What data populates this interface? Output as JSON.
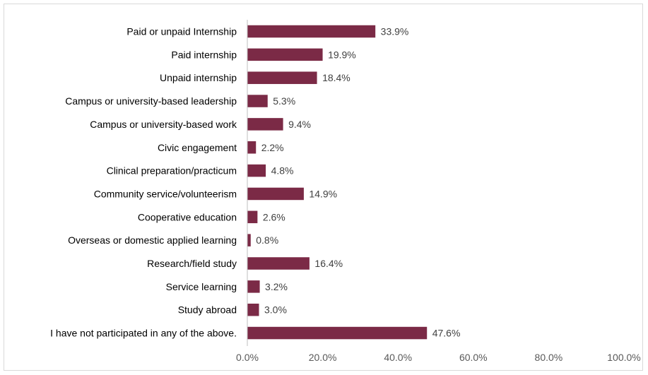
{
  "chart_data": {
    "type": "bar",
    "orientation": "horizontal",
    "categories": [
      "Paid or unpaid Internship",
      "Paid internship",
      "Unpaid internship",
      "Campus or university-based leadership",
      "Campus or university-based work",
      "Civic engagement",
      "Clinical preparation/practicum",
      "Community service/volunteerism",
      "Cooperative education",
      "Overseas or domestic applied learning",
      "Research/field study",
      "Service learning",
      "Study abroad",
      "I have not participated in any of the above."
    ],
    "values": [
      33.9,
      19.9,
      18.4,
      5.3,
      9.4,
      2.2,
      4.8,
      14.9,
      2.6,
      0.8,
      16.4,
      3.2,
      3.0,
      47.6
    ],
    "value_labels": [
      "33.9%",
      "19.9%",
      "18.4%",
      "5.3%",
      "9.4%",
      "2.2%",
      "4.8%",
      "14.9%",
      "2.6%",
      "0.8%",
      "16.4%",
      "3.2%",
      "3.0%",
      "47.6%"
    ],
    "xlim": [
      0,
      100
    ],
    "xticks": [
      0,
      20,
      40,
      60,
      80,
      100
    ],
    "xtick_labels": [
      "0.0%",
      "20.0%",
      "40.0%",
      "60.0%",
      "80.0%",
      "100.0%"
    ],
    "bar_color": "#7b2a46",
    "grid": false,
    "legend": "none"
  }
}
